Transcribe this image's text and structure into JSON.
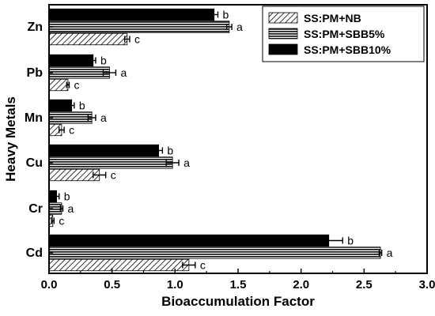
{
  "chart_data": {
    "type": "bar",
    "orientation": "horizontal",
    "title": "",
    "xlabel": "Bioaccumulation Factor",
    "ylabel": "Heavy Metals",
    "xlim": [
      0,
      3.0
    ],
    "xticks": [
      "0.0",
      "0.5",
      "1.0",
      "1.5",
      "2.0",
      "2.5",
      "3.0"
    ],
    "categories": [
      "Zn",
      "Pb",
      "Mn",
      "Cu",
      "Cr",
      "Cd"
    ],
    "legend_position": "top-right",
    "grid": false,
    "series": [
      {
        "name": "SS:PM+NB",
        "pattern": "diagonal-hatch",
        "values": [
          0.62,
          0.15,
          0.1,
          0.4,
          0.03,
          1.11
        ],
        "errors": [
          0.02,
          0.01,
          0.02,
          0.05,
          0.01,
          0.05
        ],
        "sig": [
          "c",
          "c",
          "c",
          "c",
          "c",
          "c"
        ]
      },
      {
        "name": "SS:PM+SBB5%",
        "pattern": "horizontal-lines",
        "values": [
          1.43,
          0.48,
          0.34,
          0.98,
          0.1,
          2.63
        ],
        "errors": [
          0.02,
          0.05,
          0.03,
          0.05,
          0.01,
          0.01
        ],
        "sig": [
          "a",
          "a",
          "a",
          "a",
          "a",
          "a"
        ]
      },
      {
        "name": "SS:PM+SBB10%",
        "pattern": "solid-black",
        "values": [
          1.31,
          0.35,
          0.18,
          0.87,
          0.06,
          2.22
        ],
        "errors": [
          0.03,
          0.02,
          0.02,
          0.03,
          0.02,
          0.11
        ],
        "sig": [
          "b",
          "b",
          "b",
          "b",
          "b",
          "b"
        ]
      }
    ]
  }
}
